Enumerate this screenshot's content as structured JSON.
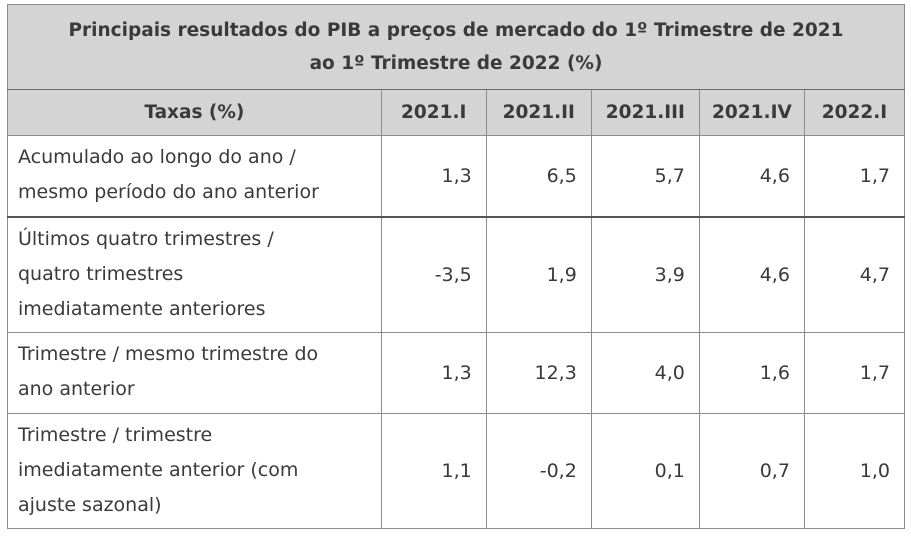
{
  "table": {
    "title_line1": "Principais resultados do PIB a preços de mercado do 1º Trimestre de 2021",
    "title_line2": "ao 1º Trimestre de 2022 (%)",
    "header": {
      "label": "Taxas (%)",
      "columns": [
        "2021.I",
        "2021.II",
        "2021.III",
        "2021.IV",
        "2022.I"
      ]
    },
    "rows": [
      {
        "label_lines": [
          "Acumulado ao longo do ano /",
          "mesmo período do ano anterior"
        ],
        "values": [
          "1,3",
          "6,5",
          "5,7",
          "4,6",
          "1,7"
        ]
      },
      {
        "label_lines": [
          "Últimos quatro trimestres /",
          "quatro trimestres",
          "imediatamente anteriores"
        ],
        "values": [
          "-3,5",
          "1,9",
          "3,9",
          "4,6",
          "4,7"
        ]
      },
      {
        "label_lines": [
          "Trimestre / mesmo trimestre do",
          "ano anterior"
        ],
        "values": [
          "1,3",
          "12,3",
          "4,0",
          "1,6",
          "1,7"
        ]
      },
      {
        "label_lines": [
          "Trimestre / trimestre",
          "imediatamente anterior (com",
          "ajuste sazonal)"
        ],
        "values": [
          "1,1",
          "-0,2",
          "0,1",
          "0,7",
          "1,0"
        ]
      }
    ]
  }
}
